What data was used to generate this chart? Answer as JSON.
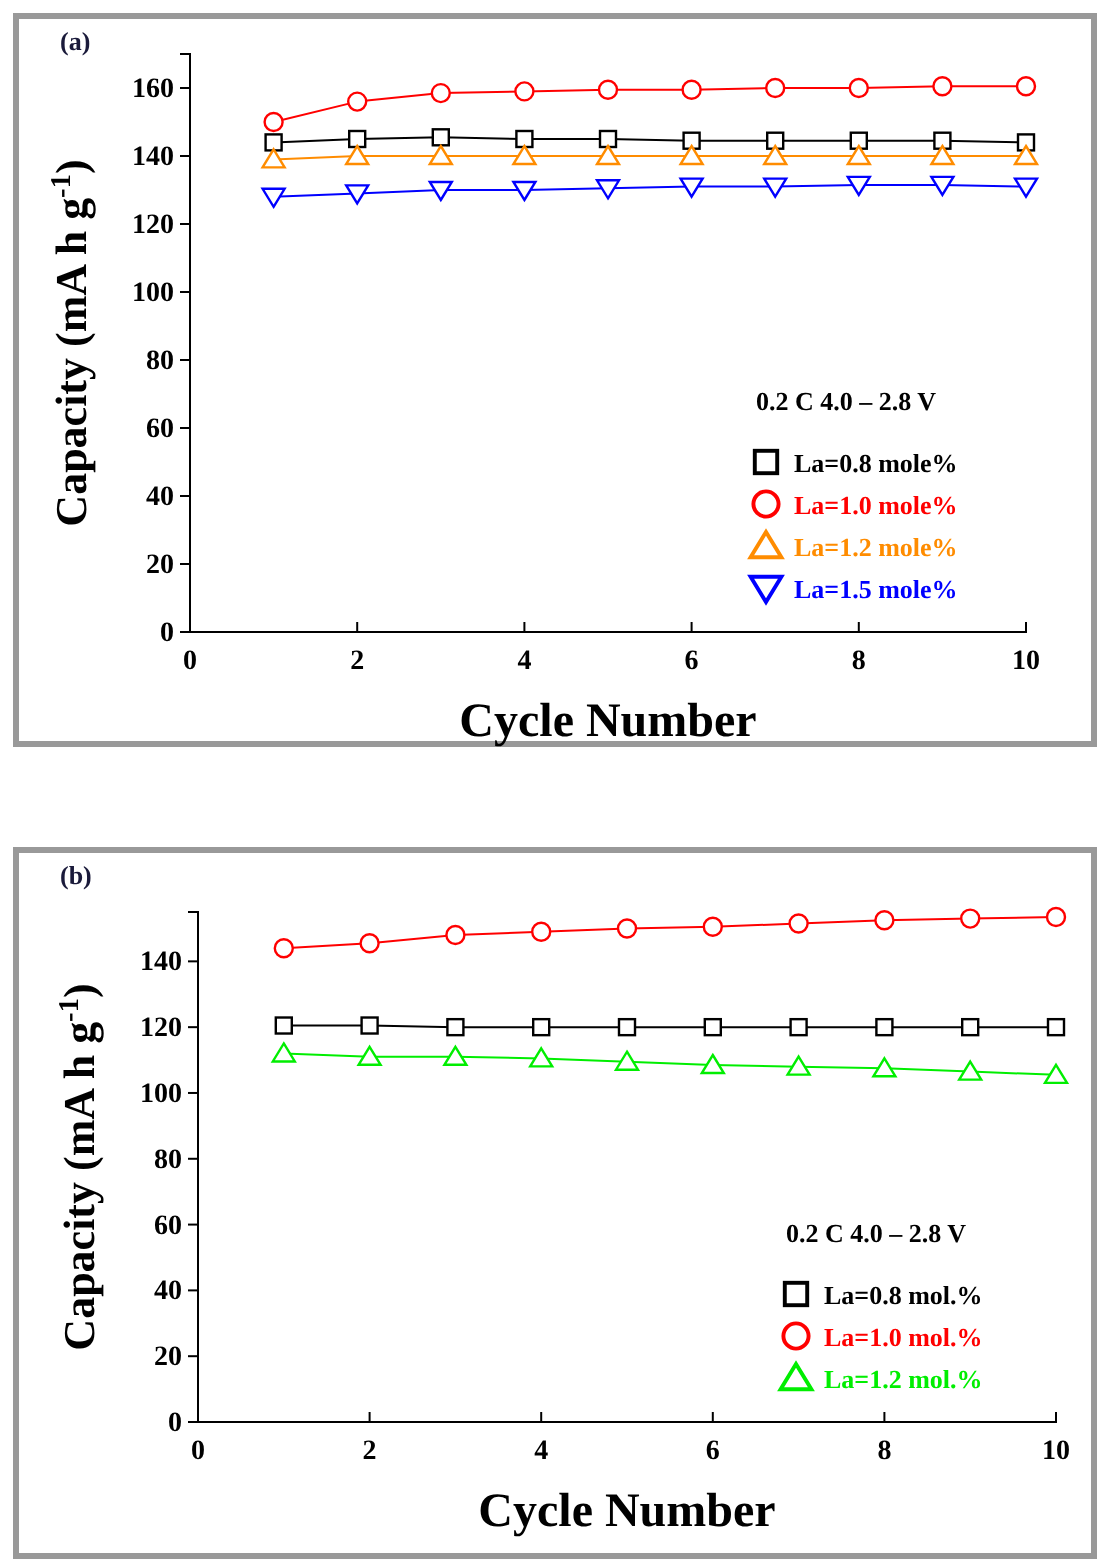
{
  "chart_data": [
    {
      "type": "line",
      "title": "(a)",
      "xlabel": "Cycle Number",
      "ylabel": "Capacity (mA h g$^{-1}$)",
      "x": [
        1,
        2,
        3,
        4,
        5,
        6,
        7,
        8,
        9,
        10
      ],
      "xlim": [
        0,
        10
      ],
      "xticks": [
        0,
        2,
        4,
        6,
        8,
        10
      ],
      "ylim": [
        0,
        170
      ],
      "yticks": [
        0,
        20,
        40,
        60,
        80,
        100,
        120,
        140,
        160
      ],
      "grid": false,
      "legend": "bottom right",
      "annotations": [
        "0.2 C  4.0 – 2.8 V"
      ],
      "series": [
        {
          "name": "La=0.8 mole%",
          "color": "#000000",
          "marker": "square",
          "values": [
            144,
            145,
            145.5,
            145,
            145,
            144.5,
            144.5,
            144.5,
            144.5,
            144
          ]
        },
        {
          "name": "La=1.0 mole%",
          "color": "#ff0000",
          "marker": "circle",
          "values": [
            150,
            156,
            158.5,
            159,
            159.5,
            159.5,
            160,
            160,
            160.5,
            160.5
          ]
        },
        {
          "name": "La=1.2 mole%",
          "color": "#ff8c00",
          "marker": "triangle",
          "values": [
            139,
            140,
            140,
            140,
            140,
            140,
            140,
            140,
            140,
            140
          ]
        },
        {
          "name": "La=1.5 mole%",
          "color": "#0000ff",
          "marker": "triangle-down",
          "values": [
            128,
            129,
            130,
            130,
            130.5,
            131,
            131,
            131.5,
            131.5,
            131
          ]
        }
      ]
    },
    {
      "type": "line",
      "title": "(b)",
      "xlabel": "Cycle Number",
      "ylabel": "Capacity (mA h g$^{-1}$)",
      "x": [
        1,
        2,
        3,
        4,
        5,
        6,
        7,
        8,
        9,
        10
      ],
      "xlim": [
        0,
        10
      ],
      "xticks": [
        0,
        2,
        4,
        6,
        8,
        10
      ],
      "ylim": [
        0,
        155
      ],
      "yticks": [
        0,
        20,
        40,
        60,
        80,
        100,
        120,
        140
      ],
      "grid": false,
      "legend": "bottom right",
      "annotations": [
        "0.2 C  4.0 – 2.8 V"
      ],
      "series": [
        {
          "name": "La=0.8 mol.%",
          "color": "#000000",
          "marker": "square",
          "values": [
            120.5,
            120.5,
            120,
            120,
            120,
            120,
            120,
            120,
            120,
            120
          ]
        },
        {
          "name": "La=1.0 mol.%",
          "color": "#ff0000",
          "marker": "circle",
          "values": [
            144,
            145.5,
            148,
            149,
            150,
            150.5,
            151.5,
            152.5,
            153,
            153.5
          ]
        },
        {
          "name": "La=1.2 mol.%",
          "color": "#00ee00",
          "marker": "triangle",
          "values": [
            112,
            111,
            111,
            110.5,
            109.5,
            108.5,
            108,
            107.5,
            106.5,
            105.5
          ]
        }
      ]
    }
  ]
}
